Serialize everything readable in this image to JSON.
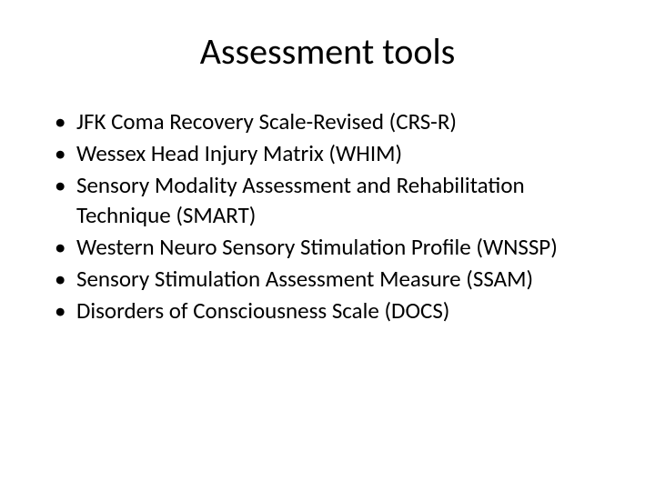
{
  "slide": {
    "title": "Assessment tools",
    "bullets": [
      "JFK Coma Recovery Scale-Revised (CRS-R)",
      "Wessex Head Injury Matrix (WHIM)",
      "Sensory Modality Assessment and Rehabilitation Technique (SMART)",
      "Western Neuro Sensory Stimulation Profile (WNSSP)",
      "Sensory Stimulation Assessment Measure (SSAM)",
      "Disorders of Consciousness Scale (DOCS)"
    ],
    "colors": {
      "background": "#ffffff",
      "text": "#000000"
    },
    "typography": {
      "title_fontsize": 40,
      "body_fontsize": 25,
      "font_family": "Calibri"
    }
  }
}
